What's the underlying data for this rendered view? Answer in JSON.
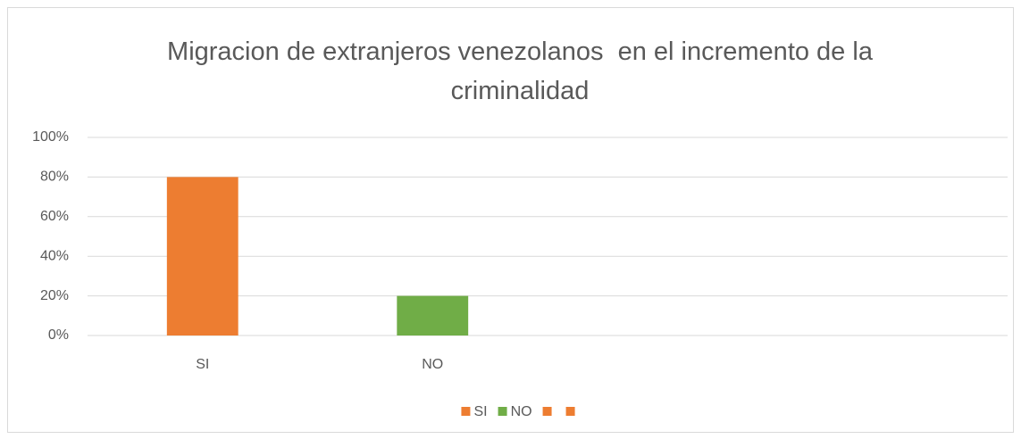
{
  "chart_data": {
    "type": "bar",
    "title": "Migracion de extranjeros venezolanos  en el incremento de la criminalidad",
    "categories": [
      "SI",
      "NO",
      null,
      null
    ],
    "values": [
      80,
      20,
      null,
      null
    ],
    "colors": [
      "#ed7d31",
      "#70ad47",
      "#ed7d31",
      "#ed7d31"
    ],
    "ylim": [
      0,
      100
    ],
    "yticks": [
      {
        "value": 0,
        "label": "0%"
      },
      {
        "value": 20,
        "label": "20%"
      },
      {
        "value": 40,
        "label": "40%"
      },
      {
        "value": 60,
        "label": "60%"
      },
      {
        "value": 80,
        "label": "80%"
      },
      {
        "value": 100,
        "label": "100%"
      }
    ],
    "grid": true,
    "legend": "bottom"
  }
}
